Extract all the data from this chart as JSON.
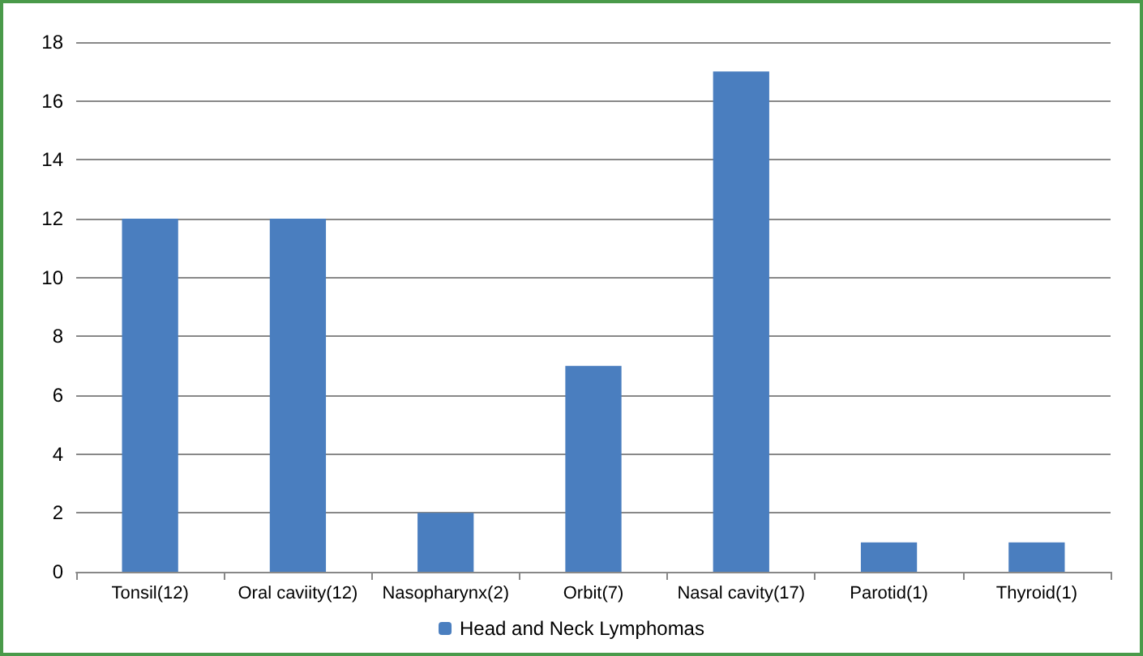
{
  "chart_data": {
    "type": "bar",
    "categories": [
      "Tonsil(12)",
      "Oral caviity(12)",
      "Nasopharynx(2)",
      "Orbit(7)",
      "Nasal cavity(17)",
      "Parotid(1)",
      "Thyroid(1)"
    ],
    "series": [
      {
        "name": "Head and Neck Lymphomas",
        "color": "#4a7ebf",
        "values": [
          12,
          12,
          2,
          7,
          17,
          1,
          1
        ]
      }
    ],
    "ylim": [
      0,
      18
    ],
    "yticks": [
      0,
      2,
      4,
      6,
      8,
      10,
      12,
      14,
      16,
      18
    ],
    "grid": "y",
    "legend": "bottom"
  }
}
